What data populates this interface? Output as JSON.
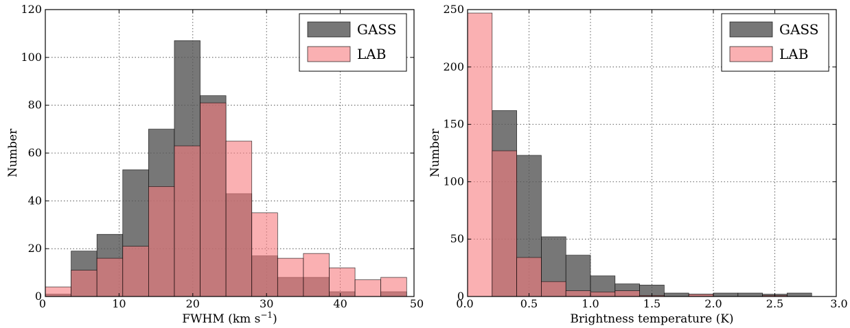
{
  "chart_data": [
    {
      "type": "bar",
      "xlabel": "FWHM (km s",
      "xlabel_superscript": "−1",
      "xlabel_suffix": ")",
      "ylabel": "Number",
      "xlim": [
        0,
        50
      ],
      "ylim": [
        0,
        120
      ],
      "xticks": [
        0,
        10,
        20,
        30,
        40,
        50
      ],
      "yticks": [
        0,
        20,
        40,
        60,
        80,
        100,
        120
      ],
      "grid": true,
      "legend_position": "top-right",
      "bin_edges": [
        0,
        3.5,
        7,
        10.5,
        14,
        17.5,
        21,
        24.5,
        28,
        31.5,
        35,
        38.5,
        42,
        45.5,
        49
      ],
      "series": [
        {
          "name": "GASS",
          "color": "#555555",
          "opacity": 0.8,
          "values": [
            1,
            19,
            26,
            53,
            70,
            107,
            84,
            43,
            17,
            8,
            8,
            2,
            0,
            2
          ]
        },
        {
          "name": "LAB",
          "color": "#f77b7f",
          "opacity": 0.6,
          "values": [
            4,
            11,
            16,
            21,
            46,
            63,
            81,
            65,
            35,
            16,
            18,
            12,
            7,
            8
          ]
        }
      ]
    },
    {
      "type": "bar",
      "xlabel": "Brightness temperature (K)",
      "ylabel": "Number",
      "xlim": [
        0,
        3
      ],
      "ylim": [
        0,
        250
      ],
      "xticks": [
        "0.0",
        "0.5",
        "1.0",
        "1.5",
        "2.0",
        "2.5",
        "3.0"
      ],
      "yticks": [
        0,
        50,
        100,
        150,
        200,
        250
      ],
      "grid": true,
      "legend_position": "top-right",
      "bin_edges": [
        0,
        0.2,
        0.4,
        0.6,
        0.8,
        1.0,
        1.2,
        1.4,
        1.6,
        1.8,
        2.0,
        2.2,
        2.4,
        2.6,
        2.8
      ],
      "series": [
        {
          "name": "GASS",
          "color": "#555555",
          "opacity": 0.8,
          "values": [
            0,
            162,
            123,
            52,
            36,
            18,
            11,
            10,
            3,
            2,
            3,
            3,
            2,
            3
          ]
        },
        {
          "name": "LAB",
          "color": "#f77b7f",
          "opacity": 0.6,
          "values": [
            247,
            127,
            34,
            13,
            5,
            4,
            5,
            1,
            0,
            2,
            0,
            0,
            1,
            0
          ]
        }
      ]
    }
  ]
}
